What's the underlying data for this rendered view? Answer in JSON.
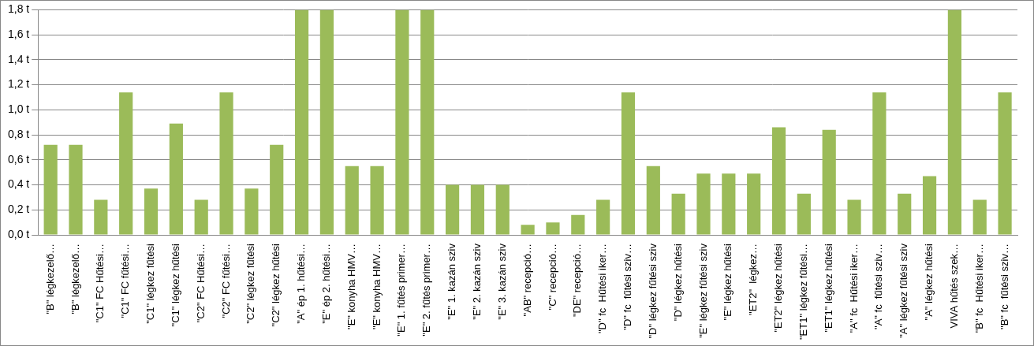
{
  "chart_data": {
    "type": "bar",
    "categories": [
      "\"B\" légkezelő…",
      "\"B\" légkezelő…",
      "\"C1\" FC Hűtési…",
      "\"C1\" FC fűtési…",
      "\"C1\" légkez fűtési",
      "\"C1\" légkez hűtési",
      "\"C2\" FC Hűtési…",
      "\"C2\" FC fűtési…",
      "\"C2\" légkez fűtési",
      "\"C2\" légkez hűtési",
      "\"A\" ép 1. hűtési…",
      "\"E\" ép 2. hűtési…",
      "\"E\" konyha HMV…",
      "\"E\" konyha HMV…",
      "\"E\" 1. fűtés primer…",
      "\"E\" 2. fűtés primer…",
      "\"E\" 1. kazán sziv",
      "\"E\" 2. kazán sziv",
      "\"E\" 3. kazán sziv",
      "\"AB\" recepció…",
      "\"C\" recepció…",
      "\"DE\" recepció…",
      "\"D\" fc  Hűtési iker…",
      "\"D\" fc  fűtési sziv…",
      "\"D\" légkez fűtési sziv",
      "\"D\" légkez hűtési",
      "\"E\" légkez fűtési sziv",
      "\"E\" légkez hűtési",
      "\"ET2\"  légkez…",
      "\"ET2\" légkez hűtési",
      "\"ET1\" légkez fűtési…",
      "\"ET1\" légkez hűtési",
      "\"A\" fc  Hűtési iker…",
      "\"A\" fc  fűtési sziv…",
      "\"A\" légkez fűtési sziv",
      "\"A\" légkez hűtési",
      "VIVA hűtés szek…",
      "\"B\" fc  Hűtési iker…",
      "\"B\" fc  fűtési sziv…"
    ],
    "values": [
      0.72,
      0.72,
      0.28,
      1.14,
      0.37,
      0.89,
      0.28,
      1.14,
      0.37,
      0.72,
      1.8,
      1.8,
      0.55,
      0.55,
      1.8,
      1.8,
      0.4,
      0.4,
      0.4,
      0.08,
      0.1,
      0.16,
      0.28,
      1.14,
      0.55,
      0.33,
      0.49,
      0.49,
      0.49,
      0.86,
      0.33,
      0.84,
      0.28,
      1.14,
      0.33,
      0.47,
      1.8,
      0.28,
      1.14
    ],
    "color": "#9bbb59",
    "ylim": [
      0,
      1.8
    ],
    "yticks": [
      {
        "value": 0,
        "label": "0,0 t"
      },
      {
        "value": 0.2,
        "label": "0,2 t"
      },
      {
        "value": 0.4,
        "label": "0,4 t"
      },
      {
        "value": 0.6,
        "label": "0,6 t"
      },
      {
        "value": 0.8,
        "label": "0,8 t"
      },
      {
        "value": 1.0,
        "label": "1,0 t"
      },
      {
        "value": 1.2,
        "label": "1,2 t"
      },
      {
        "value": 1.4,
        "label": "1,4 t"
      },
      {
        "value": 1.6,
        "label": "1,6 t"
      },
      {
        "value": 1.8,
        "label": "1,8 t"
      }
    ],
    "grid": true
  }
}
